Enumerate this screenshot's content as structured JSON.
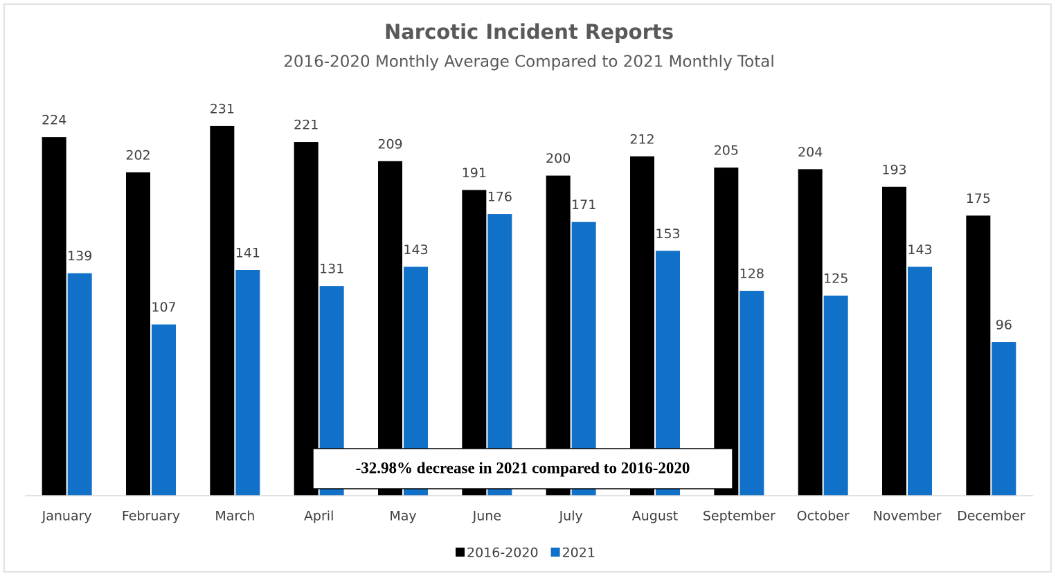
{
  "chart_data": {
    "type": "bar",
    "title": "Narcotic Incident Reports",
    "subtitle": "2016-2020 Monthly Average Compared to 2021 Monthly Total",
    "categories": [
      "January",
      "February",
      "March",
      "April",
      "May",
      "June",
      "July",
      "August",
      "September",
      "October",
      "November",
      "December"
    ],
    "series": [
      {
        "name": "2016-2020",
        "color": "#000000",
        "values": [
          224,
          202,
          231,
          221,
          209,
          191,
          200,
          212,
          205,
          204,
          193,
          175
        ]
      },
      {
        "name": "2021",
        "color": "#1170c8",
        "values": [
          139,
          107,
          141,
          131,
          143,
          176,
          171,
          153,
          128,
          125,
          143,
          96
        ]
      }
    ],
    "ylim": [
      0,
      250
    ],
    "annotation": "-32.98% decrease in 2021 compared to 2016-2020",
    "legend": "bottom"
  }
}
